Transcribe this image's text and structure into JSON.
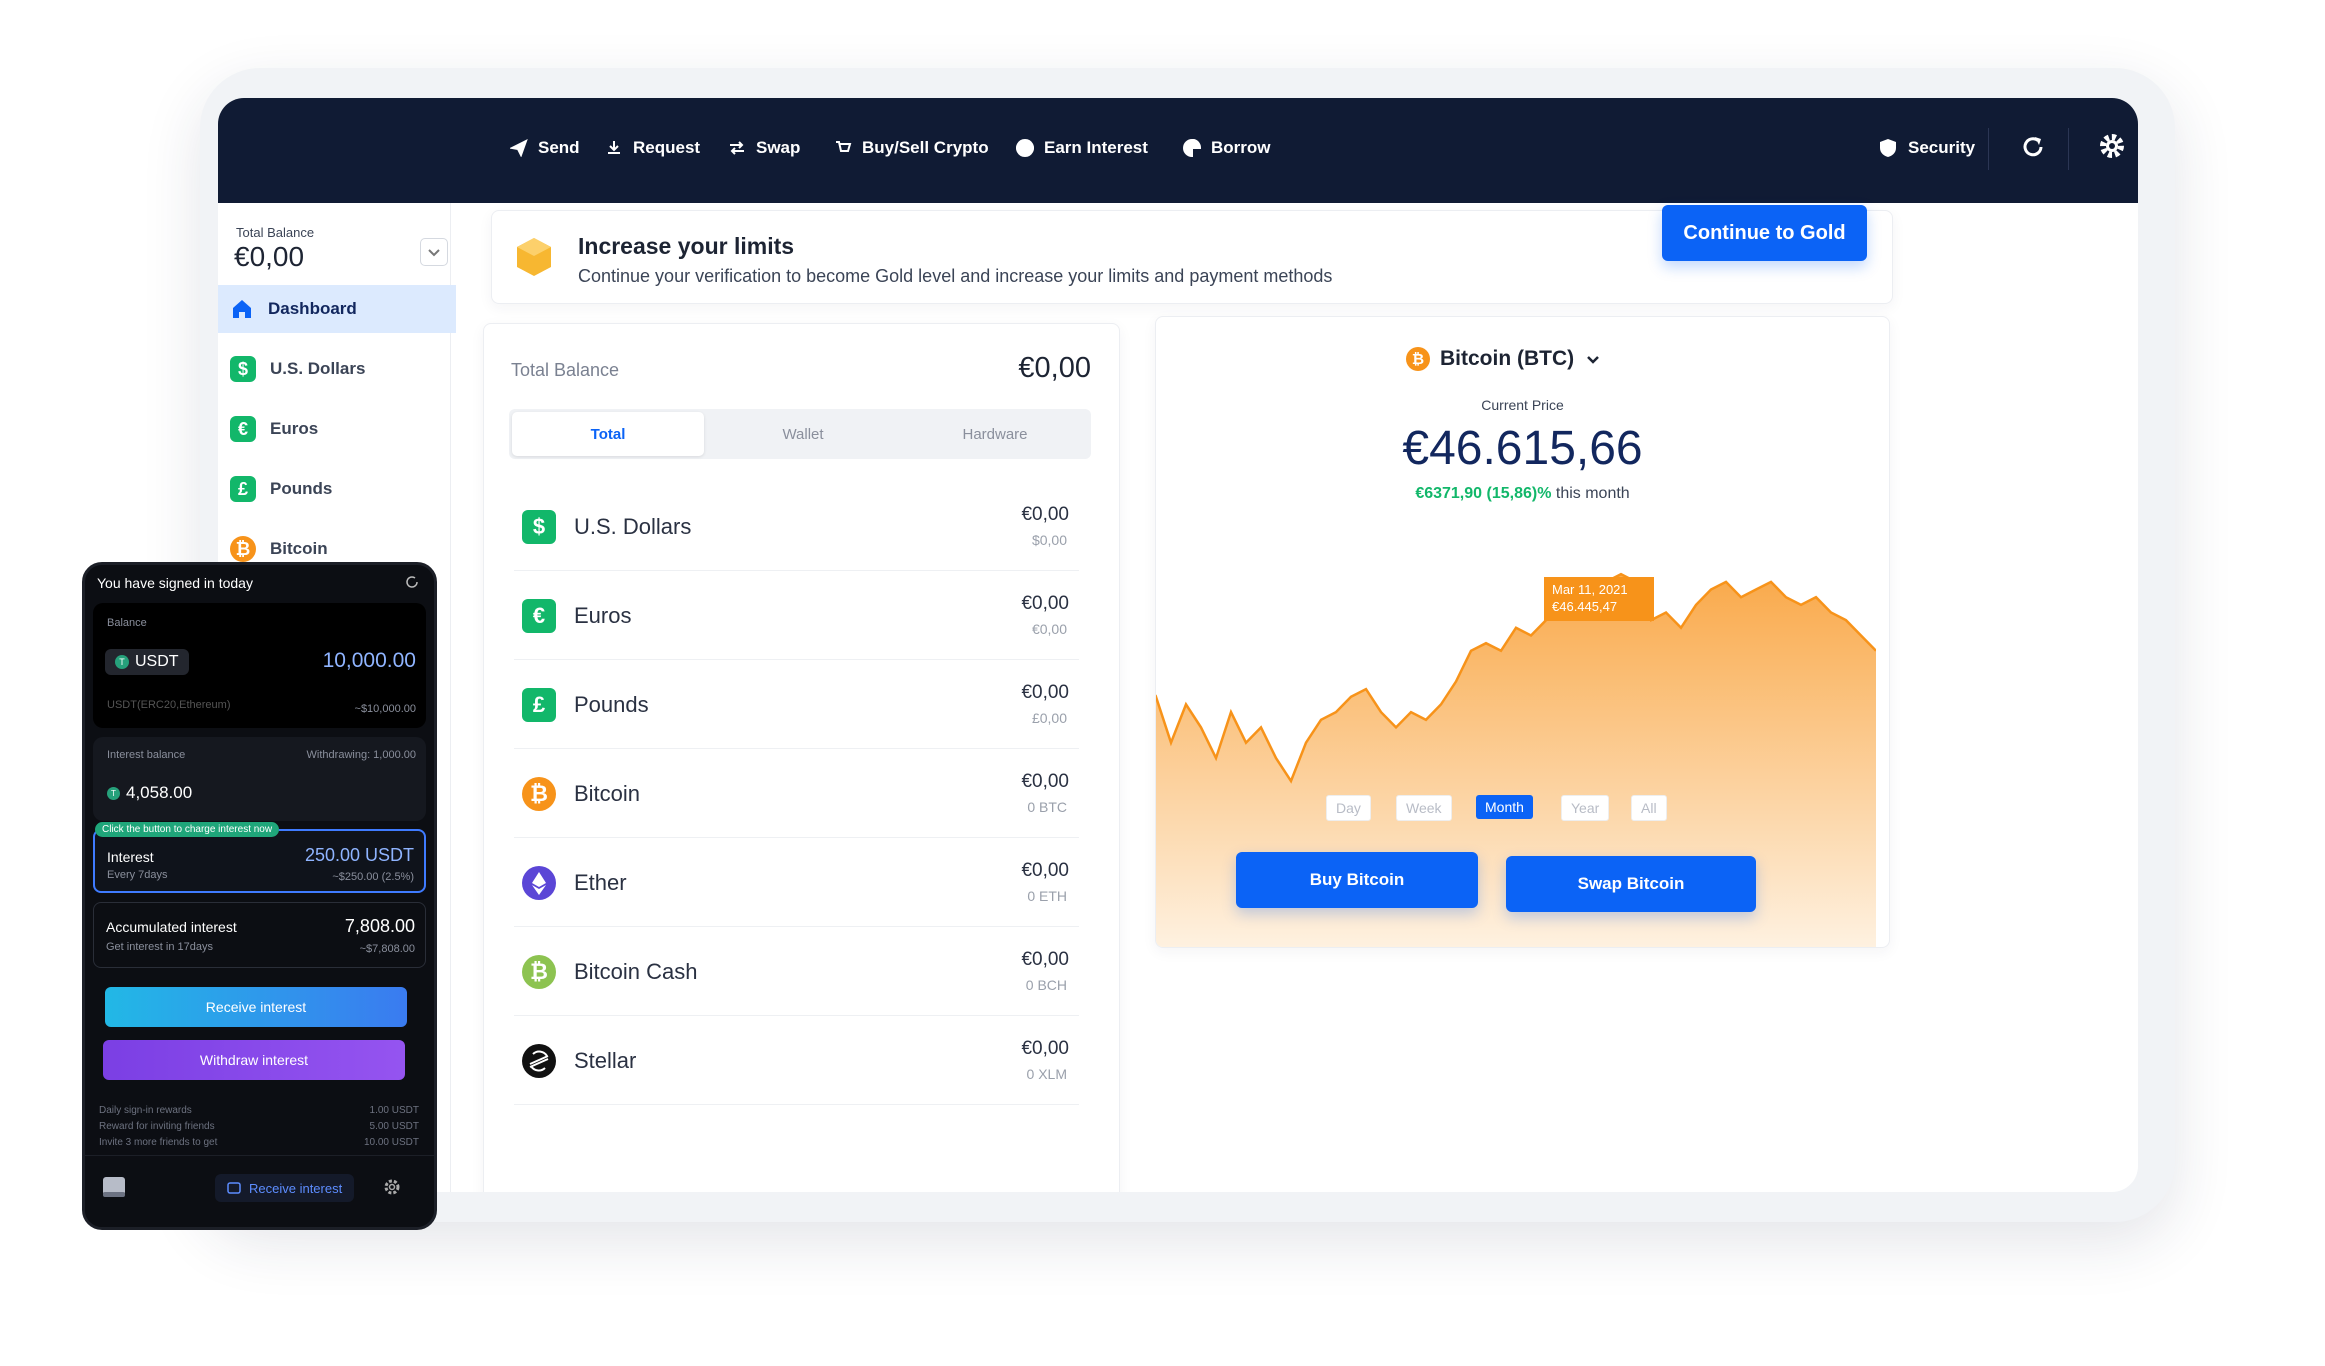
{
  "nav": {
    "items": [
      "Send",
      "Request",
      "Swap",
      "Buy/Sell Crypto",
      "Earn Interest",
      "Borrow"
    ],
    "security": "Security"
  },
  "sidebar": {
    "balance_label": "Total Balance",
    "balance": "€0,00",
    "items": [
      {
        "label": "Dashboard"
      },
      {
        "label": "U.S. Dollars",
        "icon": "$",
        "color": "#12b76a"
      },
      {
        "label": "Euros",
        "icon": "€",
        "color": "#12b76a"
      },
      {
        "label": "Pounds",
        "icon": "£",
        "color": "#12b76a"
      },
      {
        "label": "Bitcoin",
        "icon": "₿",
        "color": "#f7931a"
      }
    ]
  },
  "banner": {
    "title": "Increase your limits",
    "subtitle": "Continue your verification to become Gold level and increase your limits and payment methods",
    "button": "Continue to Gold"
  },
  "balance": {
    "label": "Total Balance",
    "value": "€0,00",
    "tabs": [
      "Total",
      "Wallet",
      "Hardware"
    ],
    "assets": [
      {
        "icon": "$",
        "color": "#12b76a",
        "name": "U.S. Dollars",
        "value": "€0,00",
        "sub": "$0,00"
      },
      {
        "icon": "€",
        "color": "#12b76a",
        "name": "Euros",
        "value": "€0,00",
        "sub": "€0,00"
      },
      {
        "icon": "£",
        "color": "#12b76a",
        "name": "Pounds",
        "value": "€0,00",
        "sub": "£0,00"
      },
      {
        "icon": "₿",
        "color": "#f7931a",
        "name": "Bitcoin",
        "value": "€0,00",
        "sub": "0 BTC"
      },
      {
        "color": "#5b46d6",
        "name": "Ether",
        "value": "€0,00",
        "sub": "0 ETH"
      },
      {
        "icon": "₿",
        "color": "#8dc351",
        "name": "Bitcoin Cash",
        "value": "€0,00",
        "sub": "0 BCH"
      },
      {
        "color": "#111111",
        "name": "Stellar",
        "value": "€0,00",
        "sub": "0 XLM"
      }
    ]
  },
  "market": {
    "coin": "Bitcoin (BTC)",
    "icon": "₿",
    "price_label": "Current Price",
    "price": "€46.615,66",
    "change": "€6371,90 (15,86)%",
    "change_suffix": "this month",
    "tooltip": {
      "date": "Mar 11, 2021",
      "value": "€46.445,47"
    },
    "ranges": [
      "Day",
      "Week",
      "Month",
      "Year",
      "All"
    ],
    "active_range": 2,
    "buttons": [
      "Buy Bitcoin",
      "Swap Bitcoin"
    ],
    "price_chart": {
      "type": "area",
      "color": "#f7931a",
      "ylim": [
        35000,
        50000
      ],
      "values": [
        44200,
        44800,
        43000,
        44500,
        43600,
        42400,
        44200,
        43000,
        43600,
        42400,
        41500,
        43000,
        43900,
        44200,
        44800,
        45100,
        44200,
        43600,
        44200,
        43900,
        44500,
        45400,
        46600,
        46900,
        46600,
        47500,
        47200,
        47800,
        48100,
        48400,
        49000,
        49300,
        49600,
        49300,
        47800,
        48100,
        47500,
        48400,
        49000,
        49300,
        48700,
        49000,
        49300,
        48700,
        48400,
        48700,
        48100,
        47800,
        47200,
        46600
      ]
    }
  },
  "phone": {
    "status": "You have signed in today",
    "balance_label": "Balance",
    "token_icon": "T",
    "token": "USDT",
    "balance": "10,000.00",
    "network": "USDT(ERC20,Ethereum)",
    "balance_usd": "~$10,000.00",
    "interest_balance_label": "Interest balance",
    "withdrawing": "Withdrawing: 1,000.00",
    "interest_balance": "4,058.00",
    "badge": "Click the button to charge interest now",
    "interest": {
      "label": "Interest",
      "value": "250.00 USDT",
      "note": "Every 7days",
      "usd": "~$250.00 (2.5%)"
    },
    "accumulated": {
      "label": "Accumulated interest",
      "value": "7,808.00",
      "note": "Get interest in 17days",
      "usd": "~$7,808.00"
    },
    "buttons": [
      "Receive interest",
      "Withdraw interest"
    ],
    "rewards": [
      [
        "Daily sign-in rewards",
        "1.00 USDT"
      ],
      [
        "Reward for inviting friends",
        "5.00 USDT"
      ],
      [
        "Invite 3 more friends to get",
        "10.00 USDT"
      ]
    ],
    "tab": "Receive interest"
  }
}
